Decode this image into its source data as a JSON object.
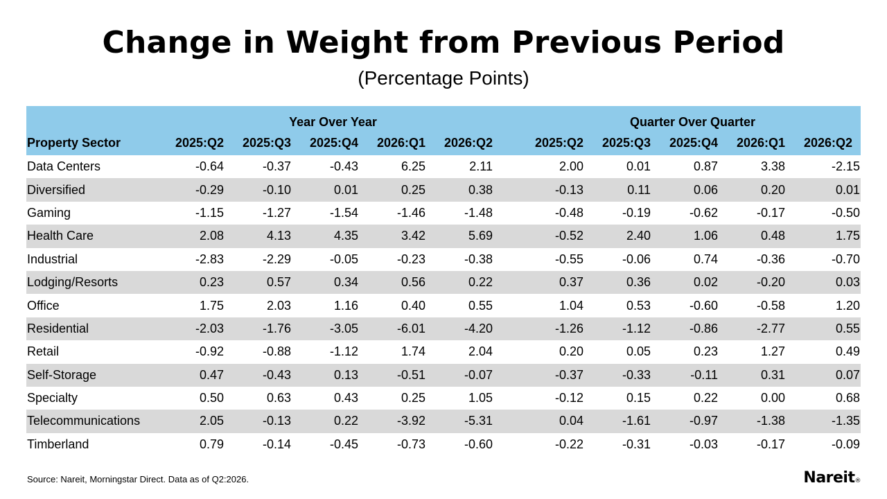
{
  "title": "Change in Weight from Previous Period",
  "subtitle": "(Percentage Points)",
  "source": "Source: Nareit, Morningstar Direct. Data as of Q2:2026.",
  "logo": "Nareit",
  "logo_mark": "®",
  "colors": {
    "header_bg": "#8fcbea",
    "stripe": "#d9d9d9"
  },
  "chart_data": {
    "type": "table",
    "row_header": "Property Sector",
    "groups": [
      "Year Over Year",
      "Quarter Over Quarter"
    ],
    "periods": [
      "2025:Q2",
      "2025:Q3",
      "2025:Q4",
      "2026:Q1",
      "2026:Q2"
    ],
    "rows": [
      {
        "sector": "Data Centers",
        "yoy": [
          "-0.64",
          "-0.37",
          "-0.43",
          "6.25",
          "2.11"
        ],
        "qoq": [
          "2.00",
          "0.01",
          "0.87",
          "3.38",
          "-2.15"
        ]
      },
      {
        "sector": "Diversified",
        "yoy": [
          "-0.29",
          "-0.10",
          "0.01",
          "0.25",
          "0.38"
        ],
        "qoq": [
          "-0.13",
          "0.11",
          "0.06",
          "0.20",
          "0.01"
        ]
      },
      {
        "sector": "Gaming",
        "yoy": [
          "-1.15",
          "-1.27",
          "-1.54",
          "-1.46",
          "-1.48"
        ],
        "qoq": [
          "-0.48",
          "-0.19",
          "-0.62",
          "-0.17",
          "-0.50"
        ]
      },
      {
        "sector": "Health Care",
        "yoy": [
          "2.08",
          "4.13",
          "4.35",
          "3.42",
          "5.69"
        ],
        "qoq": [
          "-0.52",
          "2.40",
          "1.06",
          "0.48",
          "1.75"
        ]
      },
      {
        "sector": "Industrial",
        "yoy": [
          "-2.83",
          "-2.29",
          "-0.05",
          "-0.23",
          "-0.38"
        ],
        "qoq": [
          "-0.55",
          "-0.06",
          "0.74",
          "-0.36",
          "-0.70"
        ]
      },
      {
        "sector": "Lodging/Resorts",
        "yoy": [
          "0.23",
          "0.57",
          "0.34",
          "0.56",
          "0.22"
        ],
        "qoq": [
          "0.37",
          "0.36",
          "0.02",
          "-0.20",
          "0.03"
        ]
      },
      {
        "sector": "Office",
        "yoy": [
          "1.75",
          "2.03",
          "1.16",
          "0.40",
          "0.55"
        ],
        "qoq": [
          "1.04",
          "0.53",
          "-0.60",
          "-0.58",
          "1.20"
        ]
      },
      {
        "sector": "Residential",
        "yoy": [
          "-2.03",
          "-1.76",
          "-3.05",
          "-6.01",
          "-4.20"
        ],
        "qoq": [
          "-1.26",
          "-1.12",
          "-0.86",
          "-2.77",
          "0.55"
        ]
      },
      {
        "sector": "Retail",
        "yoy": [
          "-0.92",
          "-0.88",
          "-1.12",
          "1.74",
          "2.04"
        ],
        "qoq": [
          "0.20",
          "0.05",
          "0.23",
          "1.27",
          "0.49"
        ]
      },
      {
        "sector": "Self-Storage",
        "yoy": [
          "0.47",
          "-0.43",
          "0.13",
          "-0.51",
          "-0.07"
        ],
        "qoq": [
          "-0.37",
          "-0.33",
          "-0.11",
          "0.31",
          "0.07"
        ]
      },
      {
        "sector": "Specialty",
        "yoy": [
          "0.50",
          "0.63",
          "0.43",
          "0.25",
          "1.05"
        ],
        "qoq": [
          "-0.12",
          "0.15",
          "0.22",
          "0.00",
          "0.68"
        ]
      },
      {
        "sector": "Telecommunications",
        "yoy": [
          "2.05",
          "-0.13",
          "0.22",
          "-3.92",
          "-5.31"
        ],
        "qoq": [
          "0.04",
          "-1.61",
          "-0.97",
          "-1.38",
          "-1.35"
        ]
      },
      {
        "sector": "Timberland",
        "yoy": [
          "0.79",
          "-0.14",
          "-0.45",
          "-0.73",
          "-0.60"
        ],
        "qoq": [
          "-0.22",
          "-0.31",
          "-0.03",
          "-0.17",
          "-0.09"
        ]
      }
    ]
  }
}
